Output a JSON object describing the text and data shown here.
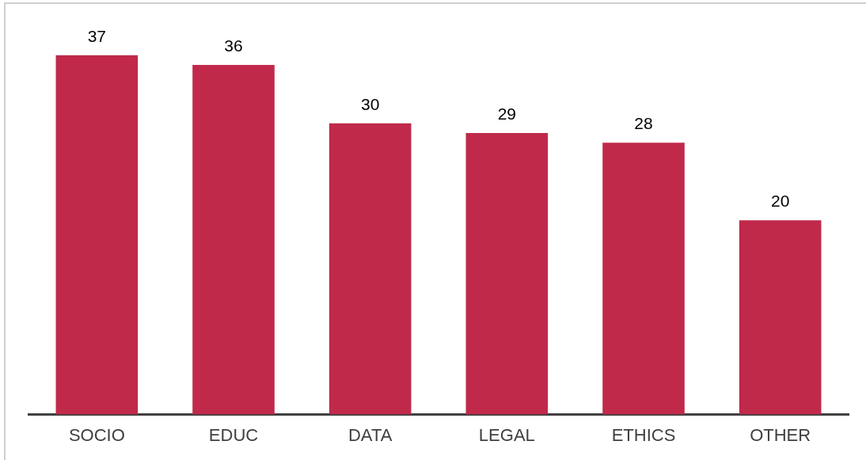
{
  "chart_data": {
    "type": "bar",
    "categories": [
      "SOCIO",
      "EDUC",
      "DATA",
      "LEGAL",
      "ETHICS",
      "OTHER"
    ],
    "values": [
      37,
      36,
      30,
      29,
      28,
      20
    ],
    "color": "#c0294a",
    "data_labels": true,
    "grid": false
  }
}
